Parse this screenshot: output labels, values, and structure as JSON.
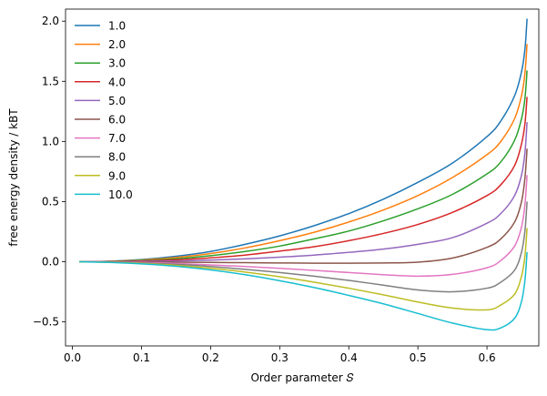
{
  "chart_data": {
    "type": "line",
    "title": "",
    "xlabel": "Order parameter 𝑆",
    "ylabel": "free energy density / kBT",
    "xlim": [
      -0.01,
      0.675
    ],
    "ylim": [
      -0.7,
      2.1
    ],
    "xticks": [
      0.0,
      0.1,
      0.2,
      0.3,
      0.4,
      0.5,
      0.6
    ],
    "xtick_labels": [
      "0.0",
      "0.1",
      "0.2",
      "0.3",
      "0.4",
      "0.5",
      "0.6"
    ],
    "yticks": [
      -0.5,
      0.0,
      0.5,
      1.0,
      1.5,
      2.0
    ],
    "ytick_labels": [
      "−0.5",
      "0.0",
      "0.5",
      "1.0",
      "1.5",
      "2.0"
    ],
    "grid": false,
    "legend_position": "top-left",
    "x": [
      0.01,
      0.05,
      0.1,
      0.15,
      0.2,
      0.25,
      0.3,
      0.35,
      0.4,
      0.45,
      0.5,
      0.55,
      0.6,
      0.62,
      0.64,
      0.65,
      0.655,
      0.658
    ],
    "series": [
      {
        "name": "1.0",
        "color": "#1f77b4",
        "values": [
          0.0,
          0.004,
          0.018,
          0.045,
          0.085,
          0.145,
          0.215,
          0.3,
          0.4,
          0.52,
          0.66,
          0.82,
          1.04,
          1.17,
          1.38,
          1.58,
          1.77,
          2.02
        ]
      },
      {
        "name": "2.0",
        "color": "#ff7f0e",
        "values": [
          0.0,
          0.003,
          0.014,
          0.035,
          0.068,
          0.115,
          0.175,
          0.245,
          0.33,
          0.43,
          0.55,
          0.7,
          0.89,
          1.0,
          1.19,
          1.38,
          1.57,
          1.81
        ]
      },
      {
        "name": "3.0",
        "color": "#2ca02c",
        "values": [
          0.0,
          0.002,
          0.01,
          0.025,
          0.05,
          0.085,
          0.13,
          0.19,
          0.255,
          0.34,
          0.44,
          0.56,
          0.73,
          0.83,
          1.01,
          1.19,
          1.36,
          1.59
        ]
      },
      {
        "name": "4.0",
        "color": "#d62728",
        "values": [
          0.0,
          0.001,
          0.006,
          0.016,
          0.032,
          0.055,
          0.088,
          0.125,
          0.175,
          0.235,
          0.31,
          0.41,
          0.55,
          0.64,
          0.8,
          0.98,
          1.15,
          1.37
        ]
      },
      {
        "name": "5.0",
        "color": "#9467bd",
        "values": [
          0.0,
          0.0,
          0.002,
          0.006,
          0.013,
          0.024,
          0.038,
          0.055,
          0.078,
          0.105,
          0.145,
          0.2,
          0.32,
          0.4,
          0.55,
          0.72,
          0.91,
          1.16
        ]
      },
      {
        "name": "6.0",
        "color": "#8c564b",
        "values": [
          0.0,
          -0.001,
          -0.002,
          -0.004,
          -0.006,
          -0.008,
          -0.01,
          -0.012,
          -0.012,
          -0.01,
          -0.004,
          0.03,
          0.12,
          0.19,
          0.33,
          0.5,
          0.7,
          0.94
        ]
      },
      {
        "name": "7.0",
        "color": "#e377c2",
        "values": [
          0.0,
          -0.002,
          -0.006,
          -0.014,
          -0.026,
          -0.04,
          -0.055,
          -0.072,
          -0.09,
          -0.108,
          -0.12,
          -0.105,
          -0.05,
          0.01,
          0.13,
          0.29,
          0.48,
          0.72
        ]
      },
      {
        "name": "8.0",
        "color": "#7f7f7f",
        "values": [
          0.0,
          -0.003,
          -0.01,
          -0.022,
          -0.04,
          -0.063,
          -0.09,
          -0.12,
          -0.155,
          -0.195,
          -0.235,
          -0.25,
          -0.22,
          -0.17,
          -0.07,
          0.08,
          0.26,
          0.5
        ]
      },
      {
        "name": "9.0",
        "color": "#bcbd22",
        "values": [
          0.0,
          -0.004,
          -0.014,
          -0.03,
          -0.054,
          -0.086,
          -0.125,
          -0.17,
          -0.22,
          -0.275,
          -0.335,
          -0.385,
          -0.4,
          -0.36,
          -0.27,
          -0.12,
          0.05,
          0.28
        ]
      },
      {
        "name": "10.0",
        "color": "#17becf",
        "values": [
          0.0,
          -0.005,
          -0.018,
          -0.038,
          -0.068,
          -0.108,
          -0.158,
          -0.215,
          -0.28,
          -0.35,
          -0.43,
          -0.51,
          -0.565,
          -0.55,
          -0.47,
          -0.33,
          -0.15,
          0.08
        ]
      }
    ]
  }
}
